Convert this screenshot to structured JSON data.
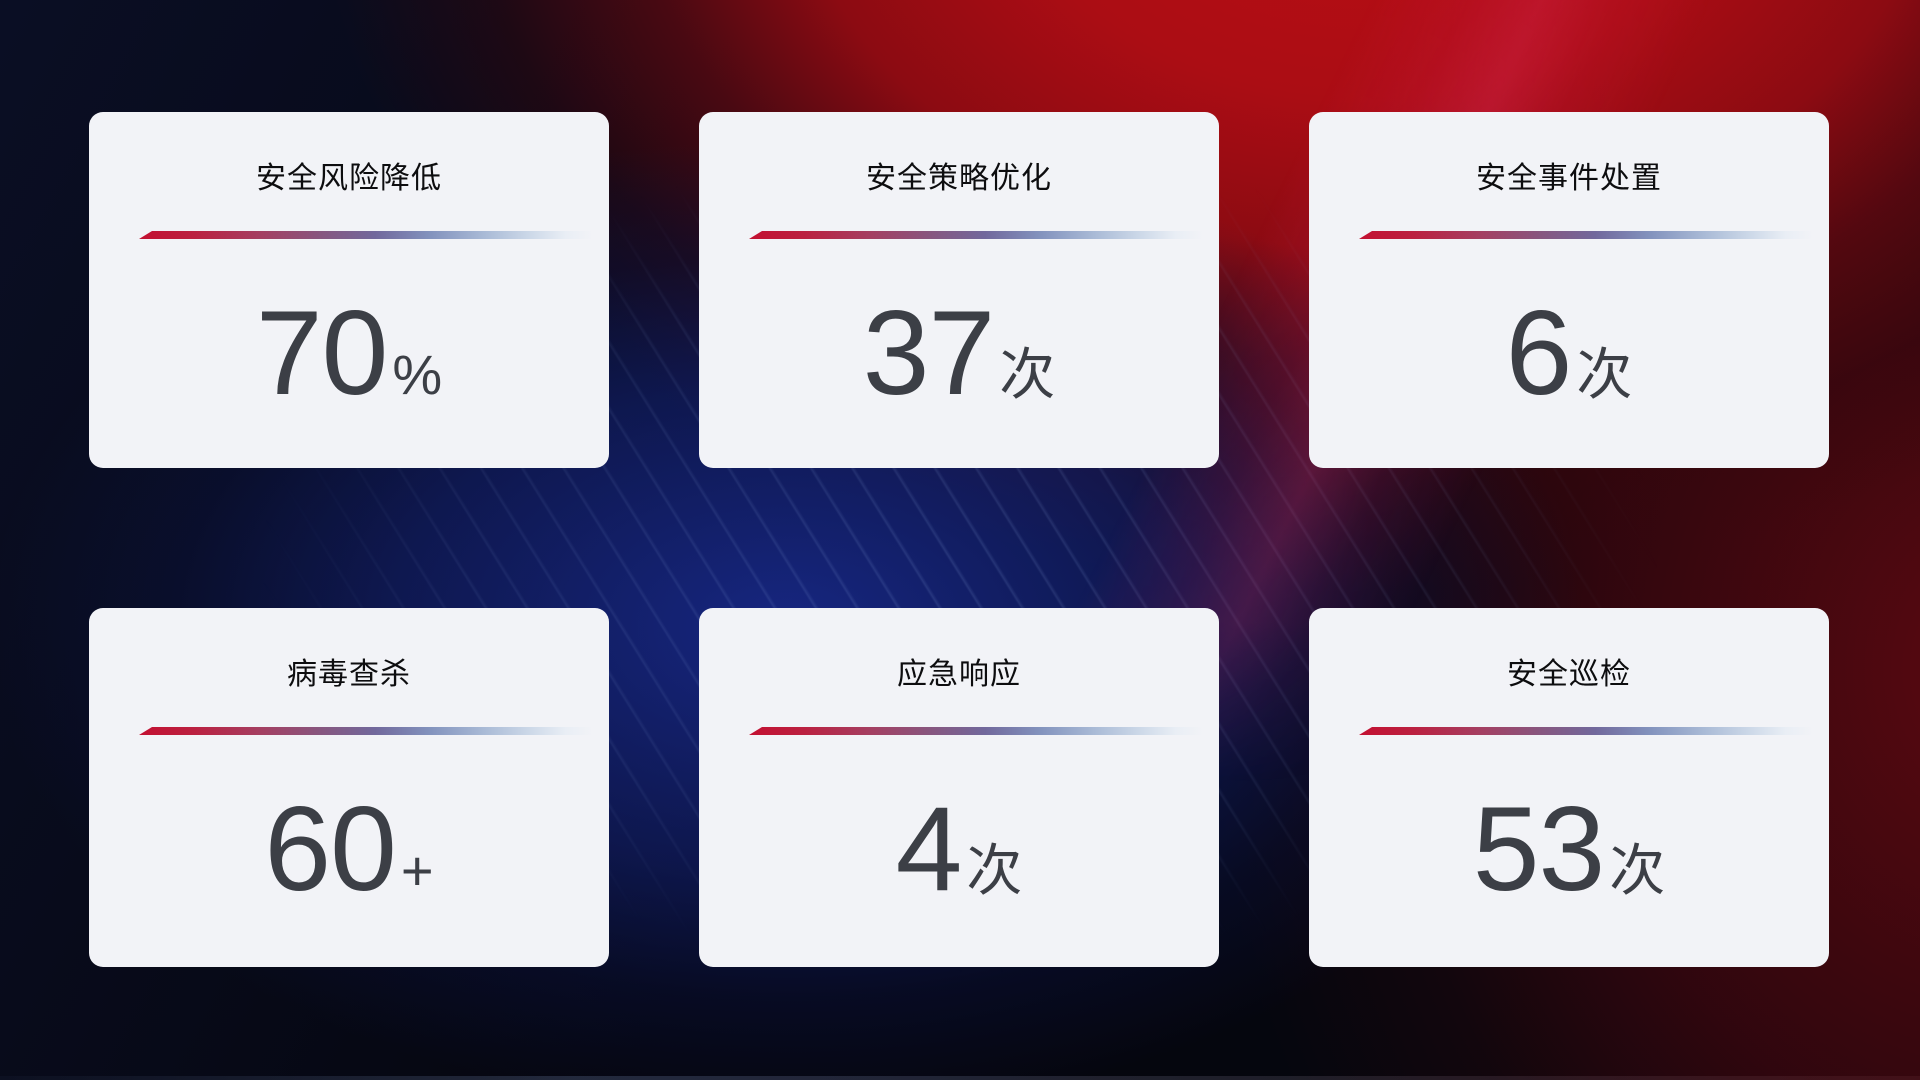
{
  "dashboard": {
    "cards": [
      {
        "title": "安全风险降低",
        "value": "70",
        "suffix": "%"
      },
      {
        "title": "安全策略优化",
        "value": "37",
        "suffix": "次"
      },
      {
        "title": "安全事件处置",
        "value": "6",
        "suffix": "次"
      },
      {
        "title": "病毒查杀",
        "value": "60",
        "suffix": "+"
      },
      {
        "title": "应急响应",
        "value": "4",
        "suffix": "次"
      },
      {
        "title": "安全巡检",
        "value": "53",
        "suffix": "次"
      }
    ],
    "colors": {
      "background_base": "#06070f",
      "background_red_glow": "#b00f16",
      "background_blue_glow": "#1a2a8a",
      "card_background": "#f2f3f7",
      "title_text": "#0d0d0f",
      "value_text": "#3c3f46",
      "divider_start": "#c31031",
      "divider_mid": "#71689c",
      "divider_end": "#e9eef5"
    }
  }
}
